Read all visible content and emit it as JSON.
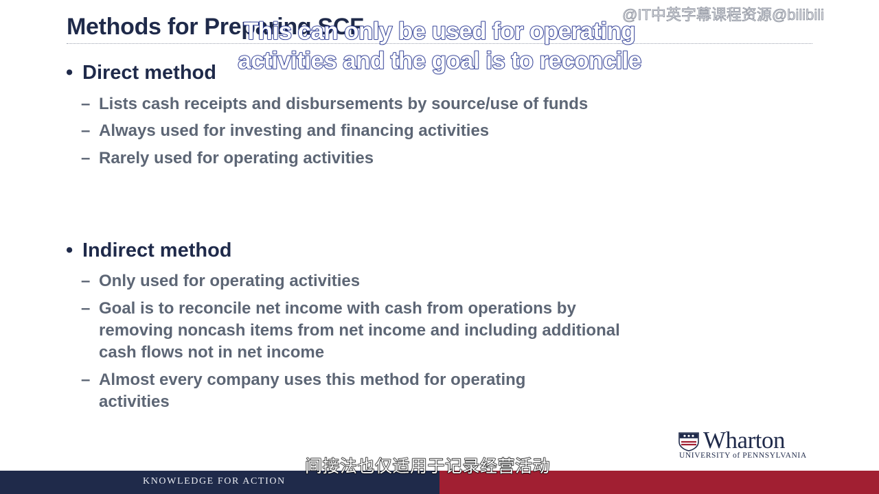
{
  "slide": {
    "title": "Methods for Preparing SCF",
    "sections": [
      {
        "heading": "Direct method",
        "items": [
          "Lists cash receipts and disbursements by source/use of funds",
          "Always used for investing and financing activities",
          "Rarely used for operating activities"
        ]
      },
      {
        "heading": "Indirect method",
        "items": [
          "Only used for operating activities",
          "Goal is to reconcile net income with cash from operations by removing noncash items from net income and including additional cash flows not in net income",
          "Almost every company uses this method for operating activities"
        ]
      }
    ],
    "bullet_glyph": "•",
    "dash_glyph": "–"
  },
  "overlay": {
    "subtitle_en": "This can only be used for operating activities and the goal is to reconcile",
    "subtitle_zh": "间接法也仅适用于记录经营活动",
    "watermark": "@IT中英字幕课程资源@bilibili"
  },
  "branding": {
    "logo_text": "Wharton",
    "university": "UNIVERSITY of PENNSYLVANIA",
    "tagline": "KNOWLEDGE FOR ACTION"
  },
  "colors": {
    "navy": "#1f2a4a",
    "crimson": "#a11f32",
    "body_text": "#5d6675"
  }
}
